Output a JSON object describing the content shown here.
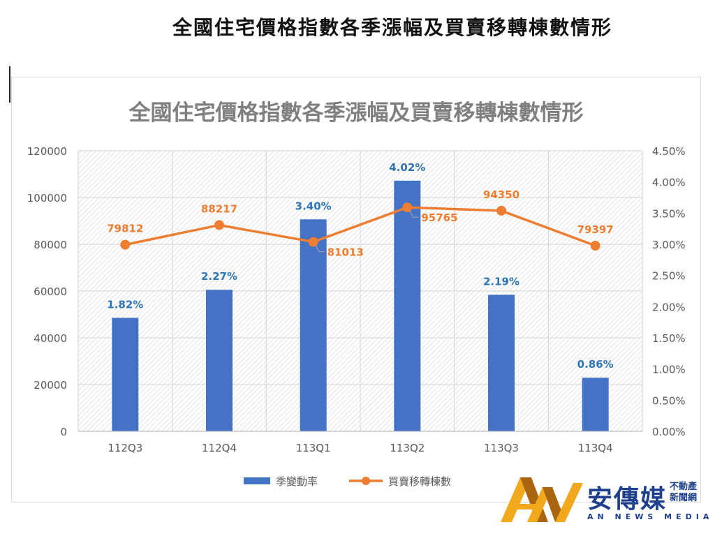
{
  "document_title": "全國住宅價格指數各季漲幅及買賣移轉棟數情形",
  "logo": {
    "name": "安傳媒",
    "subtitle": "不動產新聞網",
    "english": "AN NEWS MEDIA"
  },
  "colors": {
    "bar": "#4472c4",
    "line": "#ed7d31",
    "bar_label": "#2e75b6",
    "line_label": "#ed7d31"
  },
  "chart_data": {
    "type": "bar+line",
    "title": "全國住宅價格指數各季漲幅及買賣移轉棟數情形",
    "categories": [
      "112Q3",
      "112Q4",
      "113Q1",
      "113Q2",
      "113Q3",
      "113Q4"
    ],
    "series": [
      {
        "name": "季變動率",
        "type": "bar",
        "axis": "right",
        "values": [
          1.82,
          2.27,
          3.4,
          4.02,
          2.19,
          0.86
        ],
        "labels": [
          "1.82%",
          "2.27%",
          "3.40%",
          "4.02%",
          "2.19%",
          "0.86%"
        ]
      },
      {
        "name": "買賣移轉棟數",
        "type": "line",
        "axis": "left",
        "values": [
          79812,
          88217,
          81013,
          95765,
          94350,
          79397
        ],
        "labels": [
          "79812",
          "88217",
          "81013",
          "95765",
          "94350",
          "79397"
        ]
      }
    ],
    "y_left": {
      "range": [
        0,
        120000
      ],
      "ticks": [
        "0",
        "20000",
        "40000",
        "60000",
        "80000",
        "100000",
        "120000"
      ]
    },
    "y_right": {
      "range": [
        0,
        4.5
      ],
      "ticks": [
        "0.00%",
        "0.50%",
        "1.00%",
        "1.50%",
        "2.00%",
        "2.50%",
        "3.00%",
        "3.50%",
        "4.00%",
        "4.50%"
      ]
    },
    "grid": true,
    "legend": "bottom"
  }
}
